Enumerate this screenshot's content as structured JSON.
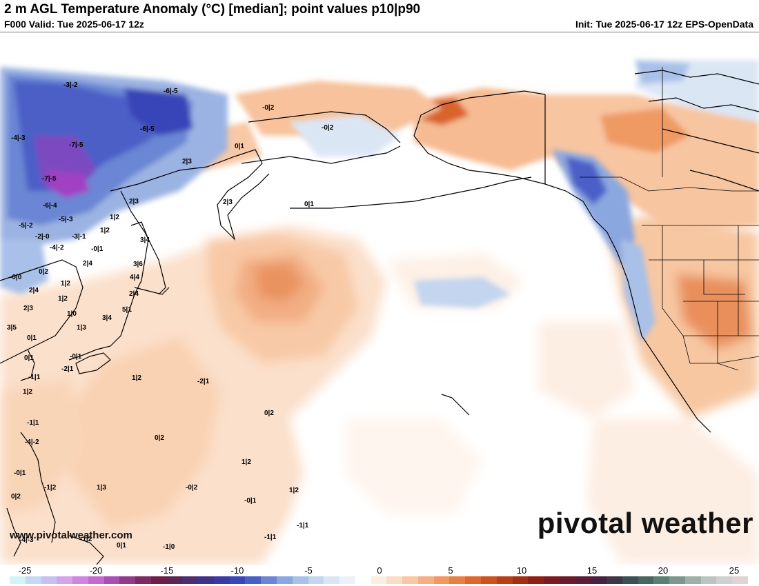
{
  "header": {
    "title": "2 m AGL Temperature Anomaly (°C) [median]; point values p10|p90",
    "valid": "F000 Valid: Tue 2025-06-17 12z",
    "init": "Init: Tue 2025-06-17 12z EPS-OpenData"
  },
  "branding": {
    "logo_text": "pivotal weather",
    "website": "www.pivotalweather.com"
  },
  "colorbar": {
    "tick_labels": [
      "-25",
      "-20",
      "-15",
      "-10",
      "-5",
      "0",
      "5",
      "10",
      "15",
      "20",
      "25"
    ],
    "colors": [
      "#d5f3f7",
      "#c5d9f5",
      "#c8c0ee",
      "#d2a5ea",
      "#cf86e1",
      "#c46acf",
      "#a84fb3",
      "#8e3b8a",
      "#7b2a63",
      "#6a1f47",
      "#5a2556",
      "#4c2d6e",
      "#3f3288",
      "#3a3aa3",
      "#3847b8",
      "#4860c6",
      "#6a85d3",
      "#8ba7df",
      "#a9c0e8",
      "#c3d5ef",
      "#dae6f5",
      "#edf2fa",
      "#ffffff",
      "#fdeee3",
      "#fbdcc6",
      "#f8c7a5",
      "#f4b083",
      "#ef9862",
      "#e88045",
      "#dd682e",
      "#cd5220",
      "#b93f18",
      "#a32e14",
      "#8f2015",
      "#7d1a1f",
      "#6b1a2c",
      "#5a1c36",
      "#4a2040",
      "#3f3547",
      "#3c4f55",
      "#46665f",
      "#5b7f73",
      "#7c978d",
      "#9fb0a9",
      "#bcc4c0",
      "#d1cfcf",
      "#dfd3d3"
    ]
  },
  "point_values": [
    "-3|-2",
    "-6|-5",
    "-0|2",
    "-6|-5",
    "-4|-3",
    "-7|-5",
    "-7|-5",
    "-0|2",
    "0|1",
    "2|3",
    "2|3",
    "0|1",
    "2|3",
    "-6|-4",
    "1|2",
    "-5|-2",
    "-5|-3",
    "1|2",
    "-2|-0",
    "-3|-1",
    "-4|-2",
    "-0|1",
    "3|4",
    "2|4",
    "3|6",
    "0|2",
    "-0|0",
    "4|4",
    "1|2",
    "2|4",
    "1|2",
    "2|4",
    "2|3",
    "1|0",
    "5|1",
    "3|4",
    "3|5",
    "1|3",
    "0|1",
    "0|1",
    "-1|1",
    "-0|1",
    "1|2",
    "-2|1",
    "1|2",
    "0|2",
    "-2|1",
    "0|2",
    "-4|-2",
    "-1|1",
    "1|2",
    "-0|1",
    "1|3",
    "-0|2",
    "-1|2",
    "0|2",
    "-0|1",
    "1|2",
    "-1|1",
    "-1|1",
    "-4|-3",
    "-1|2",
    "0|1",
    "-1|0"
  ]
}
